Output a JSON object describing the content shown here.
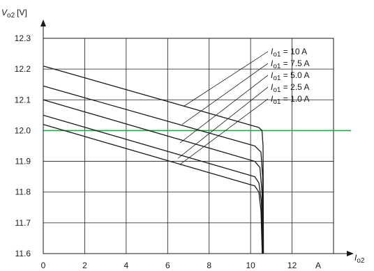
{
  "chart_data": {
    "type": "line",
    "ylabel": {
      "var": "V",
      "sub": "o2",
      "unit": "[V]"
    },
    "xlabel": {
      "var": "I",
      "sub": "o2"
    },
    "x_unit_tick": "A",
    "xlim": [
      0,
      14
    ],
    "ylim": [
      11.6,
      12.3
    ],
    "xticks": [
      "0",
      "2",
      "4",
      "6",
      "8",
      "10",
      "12"
    ],
    "yticks": [
      "12.3",
      "12.2",
      "12.1",
      "12.0",
      "11.9",
      "11.8",
      "11.7",
      "11.6"
    ],
    "grid": true,
    "reference_line": {
      "y": 12.0,
      "color": "#27a74a"
    },
    "line_color": "#1a1a1a",
    "series": [
      {
        "name": "I o1 = 10 A",
        "label_var": "I",
        "label_sub": "o1",
        "label_value": " = 10 A",
        "points": [
          [
            0,
            12.21
          ],
          [
            10.4,
            12.01
          ],
          [
            10.55,
            12.0
          ],
          [
            10.6,
            11.95
          ],
          [
            10.62,
            11.6
          ]
        ]
      },
      {
        "name": "I o1 = 7.5 A",
        "label_var": "I",
        "label_sub": "o1",
        "label_value": " = 7.5 A",
        "points": [
          [
            0,
            12.145
          ],
          [
            10.2,
            11.95
          ],
          [
            10.5,
            11.93
          ],
          [
            10.58,
            11.85
          ],
          [
            10.6,
            11.6
          ]
        ]
      },
      {
        "name": "I o1 = 5.0 A",
        "label_var": "I",
        "label_sub": "o1",
        "label_value": " = 5.0 A",
        "points": [
          [
            0,
            12.1
          ],
          [
            10.2,
            11.9
          ],
          [
            10.45,
            11.88
          ],
          [
            10.55,
            11.8
          ],
          [
            10.6,
            11.6
          ]
        ]
      },
      {
        "name": "I o1 = 2.5 A",
        "label_var": "I",
        "label_sub": "o1",
        "label_value": " = 2.5 A",
        "points": [
          [
            0,
            12.05
          ],
          [
            10.2,
            11.85
          ],
          [
            10.4,
            11.83
          ],
          [
            10.52,
            11.77
          ],
          [
            10.58,
            11.6
          ]
        ]
      },
      {
        "name": "I o1 = 1.0 A",
        "label_var": "I",
        "label_sub": "o1",
        "label_value": " = 1.0 A",
        "points": [
          [
            0,
            12.02
          ],
          [
            10.2,
            11.82
          ],
          [
            10.4,
            11.8
          ],
          [
            10.5,
            11.74
          ],
          [
            10.56,
            11.6
          ]
        ]
      }
    ],
    "legend_leaders": [
      [
        6.8,
        12.08
      ],
      [
        6.7,
        12.02
      ],
      [
        6.6,
        11.96
      ],
      [
        6.5,
        11.91
      ],
      [
        6.6,
        11.89
      ]
    ],
    "legend_placement": "top-right"
  }
}
